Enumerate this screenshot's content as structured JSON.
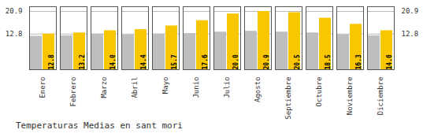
{
  "chart_data": {
    "type": "bar",
    "title": "Temperaturas Medias en sant mori",
    "categories": [
      "Enero",
      "Febrero",
      "Marzo",
      "Abril",
      "Mayo",
      "Junio",
      "Julio",
      "Agosto",
      "Septiembre",
      "Octubre",
      "Noviembre",
      "Diciembre"
    ],
    "series": [
      {
        "color": "#BEBEBE",
        "values": [
          12.0,
          12.2,
          12.8,
          12.5,
          12.8,
          13.0,
          13.5,
          13.8,
          13.5,
          13.2,
          12.5,
          12.2
        ]
      },
      {
        "color": "#F9C700",
        "values": [
          12.8,
          13.2,
          14.0,
          14.4,
          15.7,
          17.6,
          20.0,
          20.9,
          20.5,
          18.5,
          16.3,
          14.0
        ],
        "data_labels": true,
        "value_labels": [
          "12.8",
          "13.2",
          "14.0",
          "14.4",
          "15.7",
          "17.6",
          "20.0",
          "20.9",
          "20.5",
          "18.5",
          "16.3",
          "14.0"
        ]
      }
    ],
    "ylim": [
      0,
      22.6
    ],
    "yticks": [
      12.8,
      20.9
    ],
    "grid": true
  }
}
